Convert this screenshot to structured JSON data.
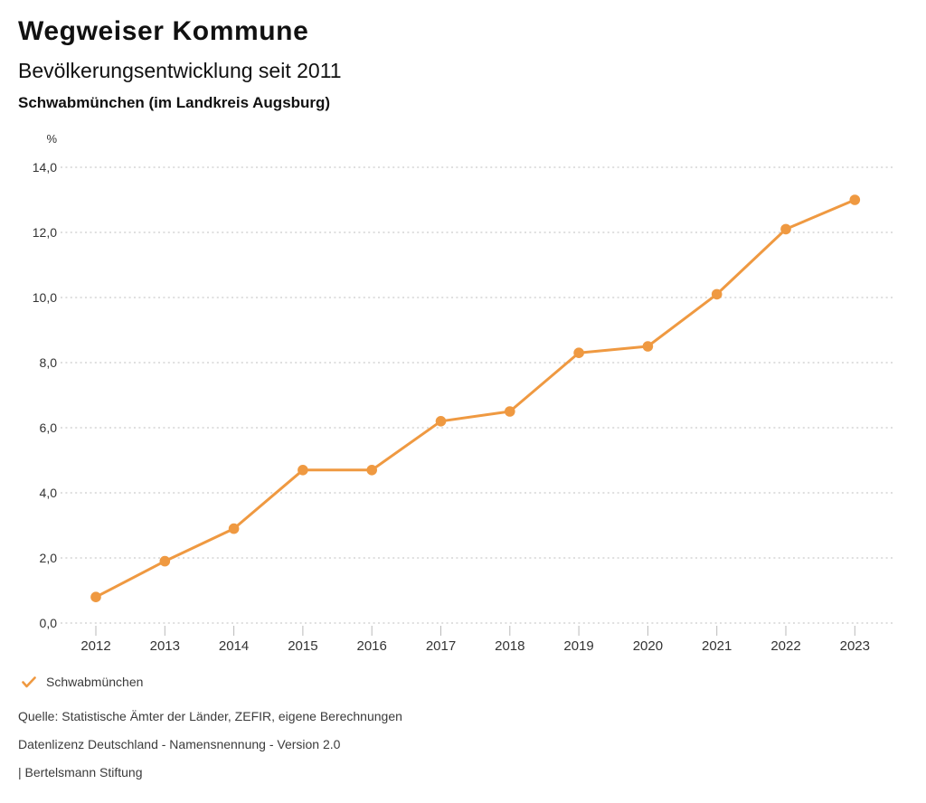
{
  "header": {
    "title": "Wegweiser Kommune",
    "subtitle": "Bevölkerungsentwicklung seit 2011",
    "region": "Schwabmünchen (im Landkreis Augsburg)"
  },
  "chart_data": {
    "type": "line",
    "title": "Bevölkerungsentwicklung seit 2011",
    "subtitle": "Schwabmünchen (im Landkreis Augsburg)",
    "unit": "%",
    "categories": [
      "2012",
      "2013",
      "2014",
      "2015",
      "2016",
      "2017",
      "2018",
      "2019",
      "2020",
      "2021",
      "2022",
      "2023"
    ],
    "series": [
      {
        "name": "Schwabmünchen",
        "values": [
          0.8,
          1.9,
          2.9,
          4.7,
          4.7,
          6.2,
          6.5,
          8.3,
          8.5,
          10.1,
          12.1,
          13.0
        ],
        "color": "#EF9941"
      }
    ],
    "ylim": [
      0,
      14
    ],
    "yticks": [
      0,
      2,
      4,
      6,
      8,
      10,
      12,
      14
    ],
    "ytick_labels": [
      "0,0",
      "2,0",
      "4,0",
      "6,0",
      "8,0",
      "10,0",
      "12,0",
      "14,0"
    ],
    "grid": "horizontal-dotted",
    "legend_position": "bottom-left"
  },
  "legend": {
    "items": [
      {
        "label": "Schwabmünchen",
        "color": "#EF9941",
        "checked": true
      }
    ]
  },
  "footer": {
    "lines": [
      "Quelle: Statistische Ämter der Länder, ZEFIR, eigene Berechnungen",
      "Datenlizenz Deutschland - Namensnennung - Version 2.0",
      "| Bertelsmann Stiftung"
    ]
  },
  "colors": {
    "series": "#EF9941",
    "grid": "#BFBFBF",
    "tick": "#B9B9B9",
    "axis_text": "#333333"
  }
}
